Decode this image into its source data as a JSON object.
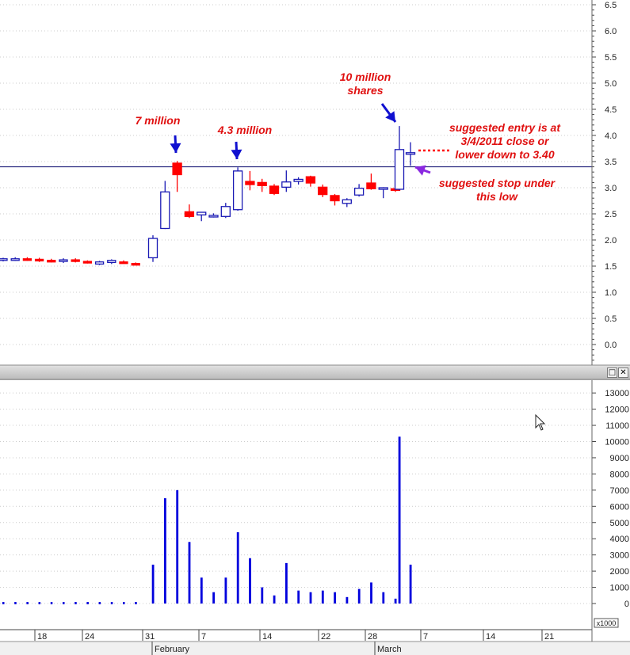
{
  "chart_data": [
    {
      "type": "candlestick",
      "title": "",
      "ylim": [
        -0.5,
        6.6
      ],
      "y_ticks": [
        "6.5",
        "6.0",
        "5.5",
        "5.0",
        "4.5",
        "4.0",
        "3.5",
        "3.0",
        "2.5",
        "2.0",
        "1.5",
        "1.0",
        "0.5",
        "0.0"
      ],
      "x_ticks": [
        "18",
        "24",
        "31",
        "7",
        "14",
        "22",
        "28",
        "7",
        "14",
        "21"
      ],
      "month_labels": [
        "February",
        "March"
      ],
      "reference_line": 3.4,
      "candles": [
        {
          "date": "Jan 13",
          "open": 1.62,
          "high": 1.66,
          "low": 1.59,
          "close": 1.64
        },
        {
          "date": "Jan 14",
          "open": 1.63,
          "high": 1.67,
          "low": 1.6,
          "close": 1.64
        },
        {
          "date": "Jan 18",
          "open": 1.64,
          "high": 1.67,
          "low": 1.6,
          "close": 1.62
        },
        {
          "date": "Jan 19",
          "open": 1.63,
          "high": 1.66,
          "low": 1.58,
          "close": 1.6
        },
        {
          "date": "Jan 20",
          "open": 1.61,
          "high": 1.64,
          "low": 1.57,
          "close": 1.59
        },
        {
          "date": "Jan 21",
          "open": 1.59,
          "high": 1.65,
          "low": 1.56,
          "close": 1.62
        },
        {
          "date": "Jan 24",
          "open": 1.62,
          "high": 1.65,
          "low": 1.57,
          "close": 1.59
        },
        {
          "date": "Jan 25",
          "open": 1.59,
          "high": 1.61,
          "low": 1.55,
          "close": 1.57
        },
        {
          "date": "Jan 26",
          "open": 1.54,
          "high": 1.6,
          "low": 1.52,
          "close": 1.58
        },
        {
          "date": "Jan 27",
          "open": 1.57,
          "high": 1.63,
          "low": 1.54,
          "close": 1.61
        },
        {
          "date": "Jan 28",
          "open": 1.58,
          "high": 1.61,
          "low": 1.55,
          "close": 1.56
        },
        {
          "date": "Jan 31",
          "open": 1.55,
          "high": 1.57,
          "low": 1.52,
          "close": 1.54
        },
        {
          "date": "Feb 1",
          "open": 1.66,
          "high": 2.09,
          "low": 1.58,
          "close": 2.03
        },
        {
          "date": "Feb 2",
          "open": 2.22,
          "high": 3.13,
          "low": 2.21,
          "close": 2.92
        },
        {
          "date": "Feb 3",
          "open": 3.47,
          "high": 3.51,
          "low": 2.92,
          "close": 3.25
        },
        {
          "date": "Feb 4",
          "open": 2.54,
          "high": 2.68,
          "low": 2.42,
          "close": 2.45
        },
        {
          "date": "Feb 7",
          "open": 2.48,
          "high": 2.53,
          "low": 2.36,
          "close": 2.53
        },
        {
          "date": "Feb 8",
          "open": 2.47,
          "high": 2.51,
          "low": 2.43,
          "close": 2.47
        },
        {
          "date": "Feb 9",
          "open": 2.45,
          "high": 2.71,
          "low": 2.42,
          "close": 2.64
        },
        {
          "date": "Feb 10",
          "open": 2.58,
          "high": 3.39,
          "low": 2.56,
          "close": 3.32
        },
        {
          "date": "Feb 11",
          "open": 3.12,
          "high": 3.32,
          "low": 2.95,
          "close": 3.06
        },
        {
          "date": "Feb 14",
          "open": 3.1,
          "high": 3.17,
          "low": 2.92,
          "close": 3.04
        },
        {
          "date": "Feb 15",
          "open": 3.03,
          "high": 3.07,
          "low": 2.86,
          "close": 2.89
        },
        {
          "date": "Feb 16",
          "open": 3.01,
          "high": 3.33,
          "low": 2.92,
          "close": 3.11
        },
        {
          "date": "Feb 17",
          "open": 3.12,
          "high": 3.2,
          "low": 3.06,
          "close": 3.16
        },
        {
          "date": "Feb 18",
          "open": 3.21,
          "high": 3.23,
          "low": 3.02,
          "close": 3.09
        },
        {
          "date": "Feb 22",
          "open": 3.01,
          "high": 3.06,
          "low": 2.82,
          "close": 2.87
        },
        {
          "date": "Feb 23",
          "open": 2.85,
          "high": 2.88,
          "low": 2.66,
          "close": 2.75
        },
        {
          "date": "Feb 24",
          "open": 2.7,
          "high": 2.8,
          "low": 2.63,
          "close": 2.77
        },
        {
          "date": "Feb 25",
          "open": 2.86,
          "high": 3.07,
          "low": 2.83,
          "close": 2.99
        },
        {
          "date": "Feb 28",
          "open": 3.09,
          "high": 3.27,
          "low": 2.96,
          "close": 2.98
        },
        {
          "date": "Mar 1",
          "open": 2.99,
          "high": 3.01,
          "low": 2.8,
          "close": 3.0
        },
        {
          "date": "Mar 2",
          "open": 2.98,
          "high": 3.01,
          "low": 2.92,
          "close": 2.97
        },
        {
          "date": "Mar 3",
          "open": 2.97,
          "high": 4.18,
          "low": 2.95,
          "close": 3.73
        },
        {
          "date": "Mar 4",
          "open": 3.67,
          "high": 3.87,
          "low": 3.42,
          "close": 3.67
        }
      ],
      "annotations": [
        {
          "id": "ann-7-million",
          "lines": [
            "7 million"
          ]
        },
        {
          "id": "ann-43-million",
          "lines": [
            "4.3 million"
          ]
        },
        {
          "id": "ann-10-million",
          "lines": [
            "10 million",
            "shares"
          ]
        },
        {
          "id": "ann-entry",
          "lines": [
            "suggested entry is at",
            "3/4/2011 close or",
            "lower down to 3.40"
          ]
        },
        {
          "id": "ann-stop",
          "lines": [
            "suggested stop under",
            "this low"
          ]
        }
      ]
    },
    {
      "type": "bar",
      "title": "",
      "ylim": [
        0,
        13800
      ],
      "y_ticks": [
        "13000",
        "12000",
        "11000",
        "10000",
        "9000",
        "8000",
        "7000",
        "6000",
        "5000",
        "4000",
        "3000",
        "2000",
        "1000",
        "0"
      ],
      "unit_label": "x1000",
      "values": [
        20,
        20,
        20,
        20,
        20,
        20,
        20,
        20,
        20,
        20,
        20,
        20,
        2400,
        6500,
        7000,
        3800,
        1600,
        700,
        1600,
        4400,
        2800,
        1000,
        500,
        2500,
        800,
        700,
        800,
        700,
        400,
        900,
        1300,
        700,
        300,
        10300,
        2400
      ]
    }
  ],
  "colors": {
    "up": "#1a1ab4",
    "down": "#ff0000",
    "volume": "#0000dd",
    "annotation": "#e01010",
    "arrow_blue": "#1010d0",
    "arrow_purple": "#8a28e0",
    "reference_line": "#0b0b6e"
  }
}
